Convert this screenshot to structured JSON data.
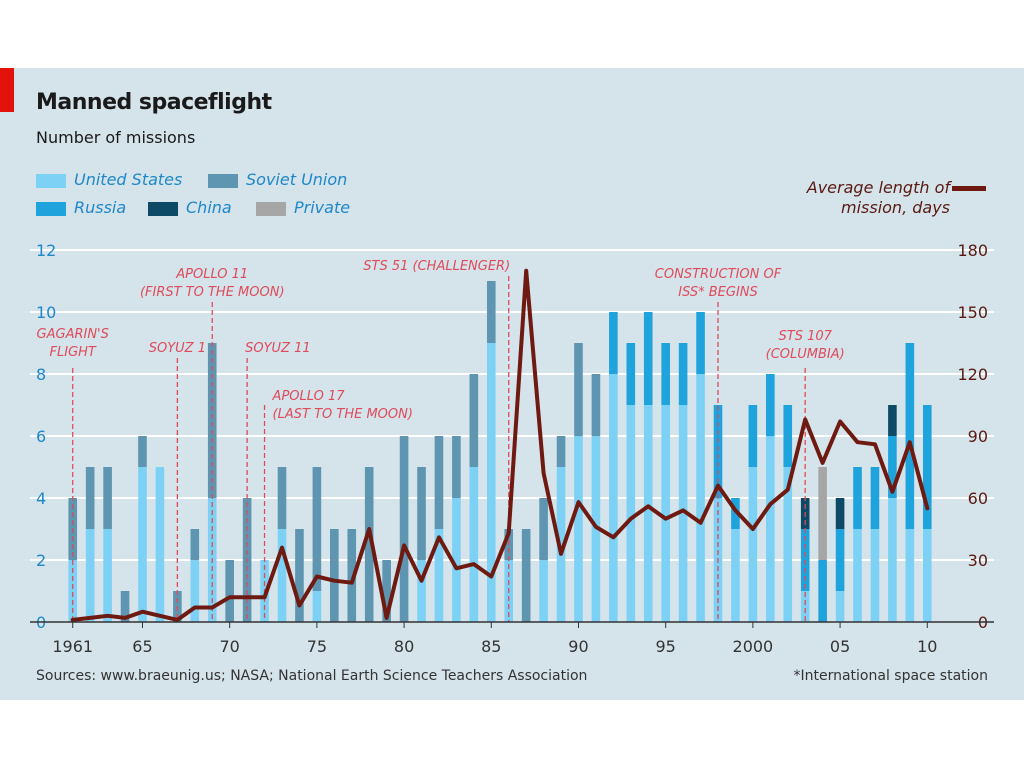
{
  "chart_data": {
    "type": "bar",
    "stacked": true,
    "title": "Manned spaceflight",
    "subtitle": "Number of missions",
    "x": [
      1961,
      1962,
      1963,
      1964,
      1965,
      1966,
      1967,
      1968,
      1969,
      1970,
      1971,
      1972,
      1973,
      1974,
      1975,
      1976,
      1977,
      1978,
      1979,
      1980,
      1981,
      1982,
      1983,
      1984,
      1985,
      1986,
      1987,
      1988,
      1989,
      1990,
      1991,
      1992,
      1993,
      1994,
      1995,
      1996,
      1997,
      1998,
      1999,
      2000,
      2001,
      2002,
      2003,
      2004,
      2005,
      2006,
      2007,
      2008,
      2009,
      2010
    ],
    "x_tick_labels": [
      "1961",
      "65",
      "70",
      "75",
      "80",
      "85",
      "90",
      "95",
      "2000",
      "05",
      "10"
    ],
    "x_tick_years": [
      1961,
      1965,
      1970,
      1975,
      1980,
      1985,
      1990,
      1995,
      2000,
      2005,
      2010
    ],
    "ylim": [
      0,
      12
    ],
    "y_ticks": [
      0,
      2,
      4,
      6,
      8,
      10,
      12
    ],
    "y2lim": [
      0,
      180
    ],
    "y2_ticks": [
      0,
      30,
      60,
      90,
      120,
      150,
      180
    ],
    "grid": true,
    "series": [
      {
        "name": "United States",
        "color": "#7dd1f5",
        "values": [
          2,
          3,
          3,
          0,
          5,
          5,
          0,
          2,
          4,
          0,
          0,
          2,
          3,
          0,
          1,
          0,
          0,
          0,
          0,
          0,
          2,
          3,
          4,
          5,
          9,
          2,
          0,
          2,
          5,
          6,
          6,
          8,
          7,
          7,
          7,
          7,
          8,
          4,
          3,
          5,
          6,
          5,
          1,
          0,
          1,
          3,
          3,
          4,
          3,
          3
        ]
      },
      {
        "name": "Soviet Union",
        "color": "#5e95b0",
        "values": [
          2,
          2,
          2,
          1,
          1,
          0,
          1,
          1,
          5,
          2,
          4,
          0,
          2,
          3,
          4,
          3,
          3,
          5,
          2,
          6,
          3,
          3,
          2,
          3,
          2,
          1,
          3,
          2,
          1,
          3,
          2,
          0,
          0,
          0,
          0,
          0,
          0,
          0,
          0,
          0,
          0,
          0,
          0,
          0,
          0,
          0,
          0,
          0,
          0,
          0
        ]
      },
      {
        "name": "Russia",
        "color": "#1ea3dd",
        "values": [
          0,
          0,
          0,
          0,
          0,
          0,
          0,
          0,
          0,
          0,
          0,
          0,
          0,
          0,
          0,
          0,
          0,
          0,
          0,
          0,
          0,
          0,
          0,
          0,
          0,
          0,
          0,
          0,
          0,
          0,
          0,
          2,
          2,
          3,
          2,
          2,
          2,
          3,
          1,
          2,
          2,
          2,
          2,
          2,
          2,
          2,
          2,
          2,
          6,
          4
        ]
      },
      {
        "name": "China",
        "color": "#0d4a66",
        "values": [
          0,
          0,
          0,
          0,
          0,
          0,
          0,
          0,
          0,
          0,
          0,
          0,
          0,
          0,
          0,
          0,
          0,
          0,
          0,
          0,
          0,
          0,
          0,
          0,
          0,
          0,
          0,
          0,
          0,
          0,
          0,
          0,
          0,
          0,
          0,
          0,
          0,
          0,
          0,
          0,
          0,
          0,
          1,
          0,
          1,
          0,
          0,
          1,
          0,
          0
        ]
      },
      {
        "name": "Private",
        "color": "#a6a6a6",
        "values": [
          0,
          0,
          0,
          0,
          0,
          0,
          0,
          0,
          0,
          0,
          0,
          0,
          0,
          0,
          0,
          0,
          0,
          0,
          0,
          0,
          0,
          0,
          0,
          0,
          0,
          0,
          0,
          0,
          0,
          0,
          0,
          0,
          0,
          0,
          0,
          0,
          0,
          0,
          0,
          0,
          0,
          0,
          0,
          3,
          0,
          0,
          0,
          0,
          0,
          0
        ]
      }
    ],
    "line": {
      "name": "Average length of mission, days",
      "color": "#6e1a10",
      "values": [
        1,
        2,
        3,
        2,
        5,
        3,
        1,
        7,
        7,
        12,
        12,
        12,
        36,
        8,
        22,
        20,
        19,
        45,
        2,
        37,
        20,
        41,
        26,
        28,
        22,
        43,
        170,
        72,
        33,
        58,
        46,
        41,
        50,
        56,
        50,
        54,
        48,
        66,
        54,
        45,
        57,
        64,
        98,
        77,
        97,
        87,
        86,
        63,
        87,
        55
      ]
    },
    "annotations": [
      {
        "year": 1961,
        "lines": [
          "GAGARIN'S",
          "FLIGHT"
        ]
      },
      {
        "year": 1967,
        "lines": [
          "SOYUZ 1"
        ]
      },
      {
        "year": 1969,
        "lines": [
          "APOLLO 11",
          "(FIRST TO THE MOON)"
        ]
      },
      {
        "year": 1971,
        "lines": [
          "SOYUZ 11"
        ]
      },
      {
        "year": 1972,
        "lines": [
          "APOLLO 17",
          "(LAST TO THE MOON)"
        ]
      },
      {
        "year": 1986,
        "lines": [
          "STS 51 (CHALLENGER)"
        ]
      },
      {
        "year": 1998,
        "lines": [
          "CONSTRUCTION OF",
          "ISS* BEGINS"
        ]
      },
      {
        "year": 2003,
        "lines": [
          "STS 107",
          "(COLUMBIA)"
        ]
      }
    ]
  },
  "legend": {
    "united_states": "United States",
    "soviet_union": "Soviet Union",
    "russia": "Russia",
    "china": "China",
    "private": "Private",
    "line_label_1": "Average length of",
    "line_label_2": "mission, days"
  },
  "source": "Sources: www.braeunig.us; NASA; National Earth Science Teachers Association",
  "footnote": "*International space station"
}
